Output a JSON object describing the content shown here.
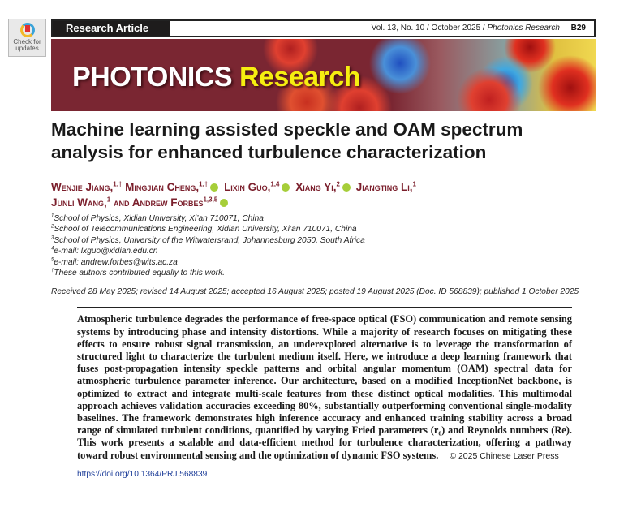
{
  "check_updates": {
    "label": "Check for updates"
  },
  "header": {
    "section": "Research Article",
    "volume_info": "Vol. 13, No. 10 / October 2025 / ",
    "journal_italic": "Photonics Research",
    "page": "B29"
  },
  "banner": {
    "logo_white": "PHOTONICS",
    "logo_yellow": "Research"
  },
  "article": {
    "title": "Machine learning assisted speckle and OAM spectrum analysis for enhanced turbulence characterization",
    "authors": [
      {
        "name": "Wenjie Jiang,",
        "sup": "1,†",
        "orcid": false
      },
      {
        "name": "Mingjian Cheng,",
        "sup": "1,†",
        "orcid": true
      },
      {
        "name": "Lixin Guo,",
        "sup": "1,4",
        "orcid": true
      },
      {
        "name": "Xiang Yi,",
        "sup": "2",
        "orcid": true
      },
      {
        "name": "Jiangting Li,",
        "sup": "1",
        "orcid": false
      },
      {
        "name": "Junli Wang,",
        "sup": "1",
        "orcid": false
      },
      {
        "name": "and Andrew Forbes",
        "sup": "1,3,5",
        "orcid": true
      }
    ],
    "affiliations": [
      {
        "sup": "1",
        "text": "School of Physics, Xidian University, Xi’an 710071, China"
      },
      {
        "sup": "2",
        "text": "School of Telecommunications Engineering, Xidian University, Xi’an 710071, China"
      },
      {
        "sup": "3",
        "text": "School of Physics, University of the Witwatersrand, Johannesburg 2050, South Africa"
      },
      {
        "sup": "4",
        "text": "e-mail: lxguo@xidian.edu.cn"
      },
      {
        "sup": "5",
        "text": "e-mail: andrew.forbes@wits.ac.za"
      },
      {
        "sup": "†",
        "text": "These authors contributed equally to this work."
      }
    ],
    "received": "Received 28 May 2025; revised 14 August 2025; accepted 16 August 2025; posted 19 August 2025 (Doc. ID 568839); published 1 October 2025",
    "abstract": "Atmospheric turbulence degrades the performance of free-space optical (FSO) communication and remote sensing systems by introducing phase and intensity distortions. While a majority of research focuses on mitigating these effects to ensure robust signal transmission, an underexplored alternative is to leverage the transformation of structured light to characterize the turbulent medium itself. Here, we introduce a deep learning framework that fuses post-propagation intensity speckle patterns and orbital angular momentum (OAM) spectral data for atmospheric turbulence parameter inference. Our architecture, based on a modified InceptionNet backbone, is optimized to extract and integrate multi-scale features from these distinct optical modalities. This multimodal approach achieves validation accuracies exceeding 80%, substantially outperforming conventional single-modality baselines. The framework demonstrates high inference accuracy and enhanced training stability across a broad range of simulated turbulent conditions, quantified by varying Fried parameters (r₀) and Reynolds numbers (Re). This work presents a scalable and data-efficient method for turbulence characterization, offering a pathway toward robust environmental sensing and the optimization of dynamic FSO systems.",
    "copyright": "© 2025 Chinese Laser Press",
    "doi": "https://doi.org/10.1364/PRJ.568839"
  },
  "colors": {
    "banner": "#7a2632",
    "author": "#7b1f2c",
    "orcid": "#a6ce39",
    "link": "#1f3f9a",
    "logo_yellow": "#f6ee10"
  }
}
